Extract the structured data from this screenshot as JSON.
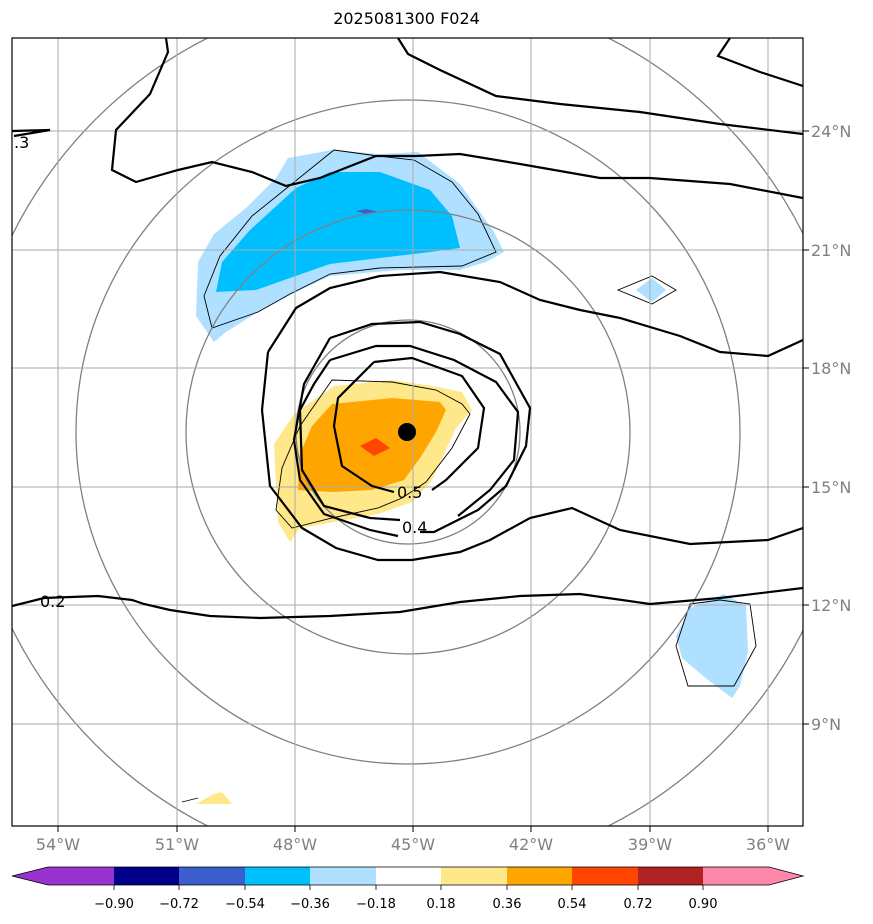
{
  "title": "2025081300 F024",
  "chart_data": {
    "type": "contour",
    "title": "2025081300 F024",
    "map_extent": {
      "lon": [
        -55.2,
        -35.2
      ],
      "lat": [
        7.0,
        27.0
      ]
    },
    "lon_ticks": [
      -54,
      -51,
      -48,
      -45,
      -42,
      -39,
      -36
    ],
    "lon_tick_labels": [
      "54°W",
      "51°W",
      "48°W",
      "45°W",
      "42°W",
      "39°W",
      "36°W"
    ],
    "lat_ticks": [
      9,
      12,
      15,
      18,
      21,
      24
    ],
    "lat_tick_labels": [
      "9°N",
      "12°N",
      "15°N",
      "18°N",
      "21°N",
      "24°N"
    ],
    "grid": true,
    "center_marker": {
      "lon": -45.1,
      "lat": 16.4
    },
    "contour_labels": [
      "0.5",
      "0.4",
      "0.2",
      ".3"
    ],
    "colorbar": {
      "ticks": [
        "−0.90",
        "−0.72",
        "−0.54",
        "−0.36",
        "−0.18",
        "0.18",
        "0.36",
        "0.54",
        "0.72",
        "0.90"
      ],
      "colors": [
        "#9932cc",
        "#00008b",
        "#3a5fcd",
        "#00bfff",
        "#b0e0ff",
        "#ffffff",
        "#ffe88a",
        "#ffa500",
        "#ff4500",
        "#b22222",
        "#ff88aa"
      ]
    }
  }
}
